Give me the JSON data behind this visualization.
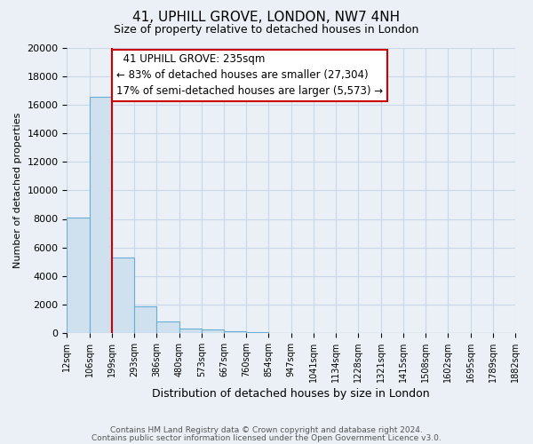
{
  "title": "41, UPHILL GROVE, LONDON, NW7 4NH",
  "subtitle": "Size of property relative to detached houses in London",
  "xlabel": "Distribution of detached houses by size in London",
  "ylabel": "Number of detached properties",
  "bar_values": [
    8109,
    16566,
    5314,
    1844,
    793,
    298,
    237,
    100,
    50,
    0,
    0,
    0,
    0,
    0,
    0,
    0,
    0,
    0,
    0,
    0
  ],
  "bar_labels": [
    "12sqm",
    "106sqm",
    "199sqm",
    "293sqm",
    "386sqm",
    "480sqm",
    "573sqm",
    "667sqm",
    "760sqm",
    "854sqm",
    "947sqm",
    "1041sqm",
    "1134sqm",
    "1228sqm",
    "1321sqm",
    "1415sqm",
    "1508sqm",
    "1602sqm",
    "1695sqm",
    "1789sqm",
    "1882sqm"
  ],
  "bar_color": "#cfe0ef",
  "bar_edge_color": "#6aadd5",
  "vline_color": "#cc0000",
  "annotation_title": "41 UPHILL GROVE: 235sqm",
  "annotation_line1": "← 83% of detached houses are smaller (27,304)",
  "annotation_line2": "17% of semi-detached houses are larger (5,573) →",
  "annotation_box_color": "#ffffff",
  "annotation_box_edge": "#cc0000",
  "ylim": [
    0,
    20000
  ],
  "yticks": [
    0,
    2000,
    4000,
    6000,
    8000,
    10000,
    12000,
    14000,
    16000,
    18000,
    20000
  ],
  "footer_line1": "Contains HM Land Registry data © Crown copyright and database right 2024.",
  "footer_line2": "Contains public sector information licensed under the Open Government Licence v3.0.",
  "bg_color": "#eaf0f6",
  "plot_bg_color": "#eaf0f6",
  "grid_color": "#c8d8e8"
}
